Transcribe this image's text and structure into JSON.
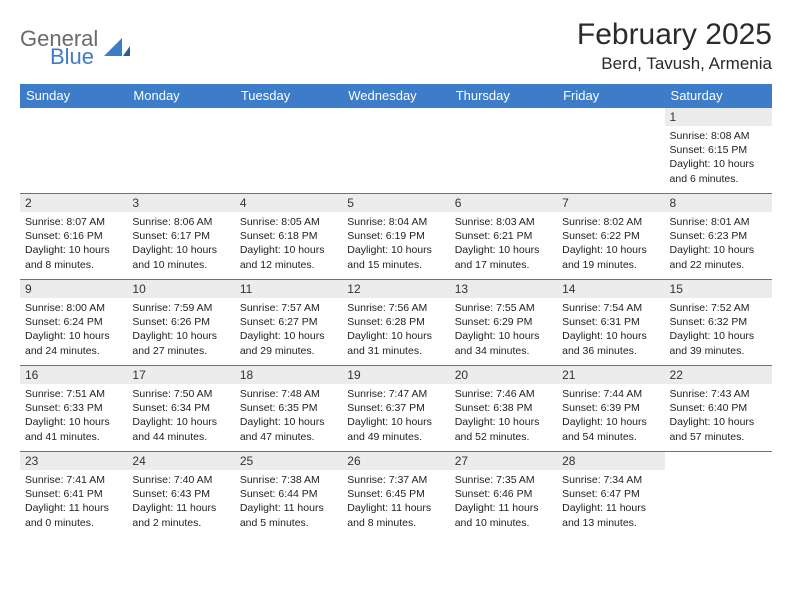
{
  "brand": {
    "word1": "General",
    "word2": "Blue"
  },
  "title": "February 2025",
  "location": "Berd, Tavush, Armenia",
  "colors": {
    "header_bg": "#3d7cc9",
    "header_fg": "#ffffff",
    "daynum_bg": "#ececec",
    "rule": "#3d7cc9"
  },
  "weekdays": [
    "Sunday",
    "Monday",
    "Tuesday",
    "Wednesday",
    "Thursday",
    "Friday",
    "Saturday"
  ],
  "weeks": [
    [
      null,
      null,
      null,
      null,
      null,
      null,
      {
        "n": "1",
        "sr": "Sunrise: 8:08 AM",
        "ss": "Sunset: 6:15 PM",
        "dl": "Daylight: 10 hours and 6 minutes."
      }
    ],
    [
      {
        "n": "2",
        "sr": "Sunrise: 8:07 AM",
        "ss": "Sunset: 6:16 PM",
        "dl": "Daylight: 10 hours and 8 minutes."
      },
      {
        "n": "3",
        "sr": "Sunrise: 8:06 AM",
        "ss": "Sunset: 6:17 PM",
        "dl": "Daylight: 10 hours and 10 minutes."
      },
      {
        "n": "4",
        "sr": "Sunrise: 8:05 AM",
        "ss": "Sunset: 6:18 PM",
        "dl": "Daylight: 10 hours and 12 minutes."
      },
      {
        "n": "5",
        "sr": "Sunrise: 8:04 AM",
        "ss": "Sunset: 6:19 PM",
        "dl": "Daylight: 10 hours and 15 minutes."
      },
      {
        "n": "6",
        "sr": "Sunrise: 8:03 AM",
        "ss": "Sunset: 6:21 PM",
        "dl": "Daylight: 10 hours and 17 minutes."
      },
      {
        "n": "7",
        "sr": "Sunrise: 8:02 AM",
        "ss": "Sunset: 6:22 PM",
        "dl": "Daylight: 10 hours and 19 minutes."
      },
      {
        "n": "8",
        "sr": "Sunrise: 8:01 AM",
        "ss": "Sunset: 6:23 PM",
        "dl": "Daylight: 10 hours and 22 minutes."
      }
    ],
    [
      {
        "n": "9",
        "sr": "Sunrise: 8:00 AM",
        "ss": "Sunset: 6:24 PM",
        "dl": "Daylight: 10 hours and 24 minutes."
      },
      {
        "n": "10",
        "sr": "Sunrise: 7:59 AM",
        "ss": "Sunset: 6:26 PM",
        "dl": "Daylight: 10 hours and 27 minutes."
      },
      {
        "n": "11",
        "sr": "Sunrise: 7:57 AM",
        "ss": "Sunset: 6:27 PM",
        "dl": "Daylight: 10 hours and 29 minutes."
      },
      {
        "n": "12",
        "sr": "Sunrise: 7:56 AM",
        "ss": "Sunset: 6:28 PM",
        "dl": "Daylight: 10 hours and 31 minutes."
      },
      {
        "n": "13",
        "sr": "Sunrise: 7:55 AM",
        "ss": "Sunset: 6:29 PM",
        "dl": "Daylight: 10 hours and 34 minutes."
      },
      {
        "n": "14",
        "sr": "Sunrise: 7:54 AM",
        "ss": "Sunset: 6:31 PM",
        "dl": "Daylight: 10 hours and 36 minutes."
      },
      {
        "n": "15",
        "sr": "Sunrise: 7:52 AM",
        "ss": "Sunset: 6:32 PM",
        "dl": "Daylight: 10 hours and 39 minutes."
      }
    ],
    [
      {
        "n": "16",
        "sr": "Sunrise: 7:51 AM",
        "ss": "Sunset: 6:33 PM",
        "dl": "Daylight: 10 hours and 41 minutes."
      },
      {
        "n": "17",
        "sr": "Sunrise: 7:50 AM",
        "ss": "Sunset: 6:34 PM",
        "dl": "Daylight: 10 hours and 44 minutes."
      },
      {
        "n": "18",
        "sr": "Sunrise: 7:48 AM",
        "ss": "Sunset: 6:35 PM",
        "dl": "Daylight: 10 hours and 47 minutes."
      },
      {
        "n": "19",
        "sr": "Sunrise: 7:47 AM",
        "ss": "Sunset: 6:37 PM",
        "dl": "Daylight: 10 hours and 49 minutes."
      },
      {
        "n": "20",
        "sr": "Sunrise: 7:46 AM",
        "ss": "Sunset: 6:38 PM",
        "dl": "Daylight: 10 hours and 52 minutes."
      },
      {
        "n": "21",
        "sr": "Sunrise: 7:44 AM",
        "ss": "Sunset: 6:39 PM",
        "dl": "Daylight: 10 hours and 54 minutes."
      },
      {
        "n": "22",
        "sr": "Sunrise: 7:43 AM",
        "ss": "Sunset: 6:40 PM",
        "dl": "Daylight: 10 hours and 57 minutes."
      }
    ],
    [
      {
        "n": "23",
        "sr": "Sunrise: 7:41 AM",
        "ss": "Sunset: 6:41 PM",
        "dl": "Daylight: 11 hours and 0 minutes."
      },
      {
        "n": "24",
        "sr": "Sunrise: 7:40 AM",
        "ss": "Sunset: 6:43 PM",
        "dl": "Daylight: 11 hours and 2 minutes."
      },
      {
        "n": "25",
        "sr": "Sunrise: 7:38 AM",
        "ss": "Sunset: 6:44 PM",
        "dl": "Daylight: 11 hours and 5 minutes."
      },
      {
        "n": "26",
        "sr": "Sunrise: 7:37 AM",
        "ss": "Sunset: 6:45 PM",
        "dl": "Daylight: 11 hours and 8 minutes."
      },
      {
        "n": "27",
        "sr": "Sunrise: 7:35 AM",
        "ss": "Sunset: 6:46 PM",
        "dl": "Daylight: 11 hours and 10 minutes."
      },
      {
        "n": "28",
        "sr": "Sunrise: 7:34 AM",
        "ss": "Sunset: 6:47 PM",
        "dl": "Daylight: 11 hours and 13 minutes."
      },
      null
    ]
  ]
}
